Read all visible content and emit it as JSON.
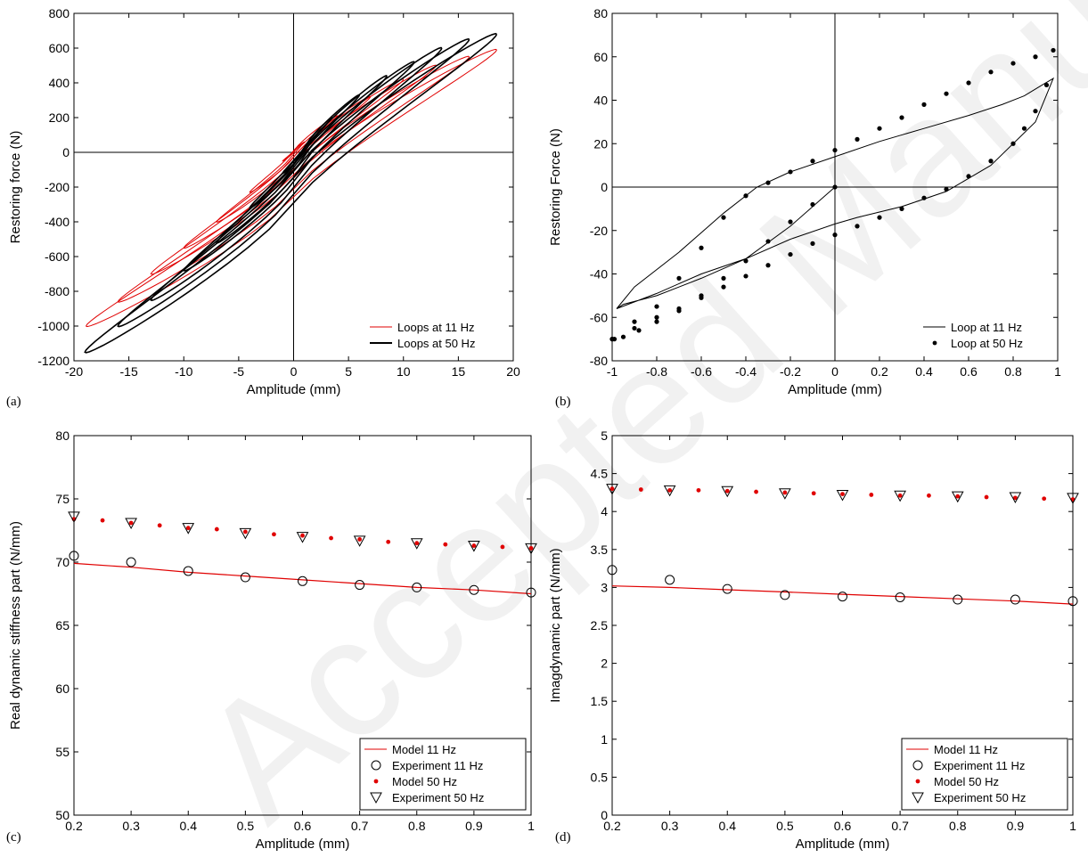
{
  "watermark": {
    "text": "Accepted Manuscript",
    "color": "#f1f1f1"
  },
  "colors": {
    "red": "#e00000",
    "black": "#000000"
  },
  "panels": [
    {
      "panel_label": "(a)"
    },
    {
      "panel_label": "(b)"
    },
    {
      "panel_label": "(c)"
    },
    {
      "panel_label": "(d)"
    }
  ],
  "chart_data": [
    {
      "type": "line",
      "xlabel": "Amplitude (mm)",
      "ylabel": "Restoring force (N)",
      "xlim": [
        -20,
        20
      ],
      "ylim": [
        -1200,
        800
      ],
      "xticks": [
        -20,
        -15,
        -10,
        -5,
        0,
        5,
        10,
        15,
        20
      ],
      "yticks": [
        -1200,
        -1000,
        -800,
        -600,
        -400,
        -200,
        0,
        200,
        400,
        600,
        800
      ],
      "crosshair": true,
      "legend_position": "bottom-right",
      "series": [
        {
          "name": "Loops at 11 Hz",
          "color": "#e00000",
          "style": "thin-line",
          "loops": [
            {
              "xmin": -18.9,
              "xmax": 18.5,
              "fmin": -1000,
              "fmax": 590
            },
            {
              "xmin": -16,
              "xmax": 16,
              "fmin": -860,
              "fmax": 550
            },
            {
              "xmin": -13,
              "xmax": 13,
              "fmin": -700,
              "fmax": 500
            },
            {
              "xmin": -10,
              "xmax": 10,
              "fmin": -550,
              "fmax": 420
            },
            {
              "xmin": -7,
              "xmax": 7,
              "fmin": -400,
              "fmax": 320
            },
            {
              "xmin": -4,
              "xmax": 4,
              "fmin": -230,
              "fmax": 210
            },
            {
              "xmin": -1,
              "xmax": 1,
              "fmin": -50,
              "fmax": 60
            }
          ]
        },
        {
          "name": "Loops at 50 Hz",
          "color": "#000000",
          "style": "thick-line",
          "loops": [
            {
              "xmin": -19,
              "xmax": 18.5,
              "fmin": -1150,
              "fmax": 680
            },
            {
              "xmin": -16,
              "xmax": 16,
              "fmin": -1000,
              "fmax": 650
            },
            {
              "xmin": -13,
              "xmax": 13.5,
              "fmin": -850,
              "fmax": 600
            },
            {
              "xmin": -10,
              "xmax": 11,
              "fmin": -680,
              "fmax": 520
            },
            {
              "xmin": -7,
              "xmax": 8.5,
              "fmin": -520,
              "fmax": 440
            },
            {
              "xmin": -4,
              "xmax": 6,
              "fmin": -320,
              "fmax": 330
            },
            {
              "xmin": -1,
              "xmax": 3.5,
              "fmin": -120,
              "fmax": 200
            }
          ]
        }
      ]
    },
    {
      "type": "line",
      "xlabel": "Amplitude (mm)",
      "ylabel": "Restoring Force (N)",
      "xlim": [
        -1,
        1
      ],
      "ylim": [
        -80,
        80
      ],
      "xticks": [
        -1,
        -0.8,
        -0.6,
        -0.4,
        -0.2,
        0,
        0.2,
        0.4,
        0.6,
        0.8,
        1
      ],
      "yticks": [
        -80,
        -60,
        -40,
        -20,
        0,
        20,
        40,
        60,
        80
      ],
      "crosshair": true,
      "legend_position": "bottom-right",
      "series": [
        {
          "name": "Loop at 11 Hz",
          "color": "#000000",
          "style": "line",
          "x": [
            0,
            -0.2,
            -0.4,
            -0.6,
            -0.8,
            -0.95,
            -0.98,
            -0.9,
            -0.7,
            -0.5,
            -0.35,
            -0.2,
            0,
            0.2,
            0.4,
            0.6,
            0.75,
            0.85,
            0.93,
            0.98,
            0.9,
            0.7,
            0.5,
            0.3,
            0.1,
            0,
            -0.2,
            -0.4,
            -0.6,
            -0.8,
            -0.98
          ],
          "y": [
            0,
            -18,
            -33,
            -42,
            -50,
            -54,
            -56,
            -46,
            -30,
            -12,
            0,
            7,
            14,
            21,
            27,
            33,
            38,
            42,
            47,
            50,
            30,
            10,
            -2,
            -9,
            -14,
            -17,
            -24,
            -33,
            -40,
            -49,
            -56
          ]
        },
        {
          "name": "Loop at 50 Hz",
          "color": "#000000",
          "style": "dots",
          "x": [
            0,
            -0.1,
            -0.2,
            -0.3,
            -0.4,
            -0.5,
            -0.6,
            -0.7,
            -0.8,
            -0.88,
            -0.95,
            -0.99,
            -1.0,
            -0.9,
            -0.8,
            -0.7,
            -0.6,
            -0.5,
            -0.4,
            -0.3,
            -0.2,
            -0.1,
            0,
            0.1,
            0.2,
            0.3,
            0.4,
            0.5,
            0.6,
            0.7,
            0.8,
            0.9,
            0.98,
            0.95,
            0.9,
            0.85,
            0.8,
            0.7,
            0.6,
            0.5,
            0.4,
            0.3,
            0.2,
            0.1,
            0,
            -0.1,
            -0.2,
            -0.3,
            -0.4,
            -0.5,
            -0.6,
            -0.7,
            -0.8,
            -0.9,
            -1.0
          ],
          "y": [
            0,
            -8,
            -16,
            -25,
            -34,
            -42,
            -50,
            -57,
            -62,
            -66,
            -69,
            -70,
            -70,
            -62,
            -55,
            -42,
            -28,
            -14,
            -4,
            2,
            7,
            12,
            17,
            22,
            27,
            32,
            38,
            43,
            48,
            53,
            57,
            60,
            63,
            47,
            35,
            27,
            20,
            12,
            5,
            -1,
            -5,
            -10,
            -14,
            -18,
            -22,
            -26,
            -31,
            -36,
            -41,
            -46,
            -51,
            -56,
            -60,
            -65,
            -70
          ]
        }
      ]
    },
    {
      "type": "line",
      "xlabel": "Amplitude (mm)",
      "ylabel": "Real dynamic stiffness part (N/mm)",
      "xlim": [
        0.2,
        1
      ],
      "ylim": [
        50,
        80
      ],
      "xticks": [
        0.2,
        0.3,
        0.4,
        0.5,
        0.6,
        0.7,
        0.8,
        0.9,
        1
      ],
      "yticks": [
        50,
        55,
        60,
        65,
        70,
        75,
        80
      ],
      "legend_position": "bottom-right",
      "series": [
        {
          "name": "Model 11 Hz",
          "color": "#e00000",
          "style": "line",
          "x": [
            0.2,
            0.3,
            0.4,
            0.5,
            0.6,
            0.7,
            0.8,
            0.9,
            1.0
          ],
          "y": [
            69.9,
            69.6,
            69.2,
            68.9,
            68.6,
            68.3,
            68.0,
            67.8,
            67.5
          ]
        },
        {
          "name": "Experiment 11 Hz",
          "color": "#000000",
          "style": "circle",
          "x": [
            0.2,
            0.3,
            0.4,
            0.5,
            0.6,
            0.7,
            0.8,
            0.9,
            1.0
          ],
          "y": [
            70.5,
            70.0,
            69.3,
            68.8,
            68.5,
            68.2,
            68.0,
            67.8,
            67.6
          ]
        },
        {
          "name": "Model 50 Hz",
          "color": "#e00000",
          "style": "dots",
          "x": [
            0.2,
            0.25,
            0.3,
            0.35,
            0.4,
            0.45,
            0.5,
            0.55,
            0.6,
            0.65,
            0.7,
            0.75,
            0.8,
            0.85,
            0.9,
            0.95,
            1.0
          ],
          "y": [
            73.4,
            73.3,
            73.1,
            72.9,
            72.7,
            72.6,
            72.4,
            72.2,
            72.1,
            71.9,
            71.8,
            71.6,
            71.5,
            71.4,
            71.3,
            71.2,
            71.1
          ]
        },
        {
          "name": "Experiment 50 Hz",
          "color": "#000000",
          "style": "triangle",
          "x": [
            0.2,
            0.3,
            0.4,
            0.5,
            0.6,
            0.7,
            0.8,
            0.9,
            1.0
          ],
          "y": [
            73.6,
            73.1,
            72.7,
            72.3,
            72.0,
            71.7,
            71.5,
            71.3,
            71.1
          ]
        }
      ]
    },
    {
      "type": "line",
      "xlabel": "Amplitude (mm)",
      "ylabel": "Imagdynamic part (N/mm)",
      "xlim": [
        0.2,
        1
      ],
      "ylim": [
        0,
        5
      ],
      "xticks": [
        0.2,
        0.3,
        0.4,
        0.5,
        0.6,
        0.7,
        0.8,
        0.9,
        1
      ],
      "yticks": [
        0,
        0.5,
        1,
        1.5,
        2,
        2.5,
        3,
        3.5,
        4,
        4.5,
        5
      ],
      "legend_position": "bottom-right",
      "series": [
        {
          "name": "Model 11 Hz",
          "color": "#e00000",
          "style": "line",
          "x": [
            0.2,
            0.3,
            0.4,
            0.5,
            0.6,
            0.7,
            0.8,
            0.9,
            1.0
          ],
          "y": [
            3.02,
            3.0,
            2.97,
            2.94,
            2.91,
            2.88,
            2.85,
            2.82,
            2.78
          ]
        },
        {
          "name": "Experiment 11 Hz",
          "color": "#000000",
          "style": "circle",
          "x": [
            0.2,
            0.3,
            0.4,
            0.5,
            0.6,
            0.7,
            0.8,
            0.9,
            1.0
          ],
          "y": [
            3.23,
            3.1,
            2.98,
            2.9,
            2.88,
            2.87,
            2.84,
            2.84,
            2.82
          ]
        },
        {
          "name": "Model 50 Hz",
          "color": "#e00000",
          "style": "dots",
          "x": [
            0.2,
            0.25,
            0.3,
            0.35,
            0.4,
            0.45,
            0.5,
            0.55,
            0.6,
            0.65,
            0.7,
            0.75,
            0.8,
            0.85,
            0.9,
            0.95,
            1.0
          ],
          "y": [
            4.3,
            4.29,
            4.28,
            4.28,
            4.27,
            4.26,
            4.25,
            4.24,
            4.23,
            4.22,
            4.21,
            4.21,
            4.2,
            4.19,
            4.18,
            4.17,
            4.16
          ]
        },
        {
          "name": "Experiment 50 Hz",
          "color": "#000000",
          "style": "triangle",
          "x": [
            0.2,
            0.3,
            0.4,
            0.5,
            0.6,
            0.7,
            0.8,
            0.9,
            1.0
          ],
          "y": [
            4.3,
            4.28,
            4.27,
            4.24,
            4.22,
            4.21,
            4.2,
            4.19,
            4.18
          ]
        }
      ]
    }
  ]
}
